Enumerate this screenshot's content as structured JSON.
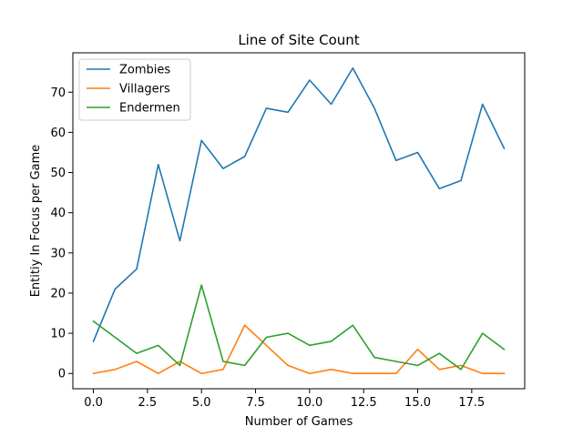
{
  "chart_data": {
    "type": "line",
    "title": "Line of Site Count",
    "xlabel": "Number of Games",
    "ylabel": "Entitiy In Focus per Game",
    "xlim": [
      -0.95,
      19.95
    ],
    "ylim": [
      -3.8,
      79.8
    ],
    "xticks": [
      0.0,
      2.5,
      5.0,
      7.5,
      10.0,
      12.5,
      15.0,
      17.5
    ],
    "xtick_labels": [
      "0.0",
      "2.5",
      "5.0",
      "7.5",
      "10.0",
      "12.5",
      "15.0",
      "17.5"
    ],
    "yticks": [
      0,
      10,
      20,
      30,
      40,
      50,
      60,
      70
    ],
    "ytick_labels": [
      "0",
      "10",
      "20",
      "30",
      "40",
      "50",
      "60",
      "70"
    ],
    "grid": false,
    "legend_position": "top-left",
    "x": [
      0,
      1,
      2,
      3,
      4,
      5,
      6,
      7,
      8,
      9,
      10,
      11,
      12,
      13,
      14,
      15,
      16,
      17,
      18,
      19
    ],
    "series": [
      {
        "name": "Zombies",
        "color": "#1f77b4",
        "values": [
          8,
          21,
          26,
          52,
          33,
          58,
          51,
          54,
          66,
          65,
          73,
          67,
          76,
          66,
          53,
          55,
          46,
          48,
          67,
          56
        ]
      },
      {
        "name": "Villagers",
        "color": "#ff7f0e",
        "values": [
          0,
          1,
          3,
          0,
          3,
          0,
          1,
          12,
          7,
          2,
          0,
          1,
          0,
          0,
          0,
          6,
          1,
          2,
          0,
          0
        ]
      },
      {
        "name": "Endermen",
        "color": "#2ca02c",
        "values": [
          13,
          9,
          5,
          7,
          2,
          22,
          3,
          2,
          9,
          10,
          7,
          8,
          12,
          4,
          3,
          2,
          5,
          1,
          10,
          6
        ]
      }
    ]
  }
}
